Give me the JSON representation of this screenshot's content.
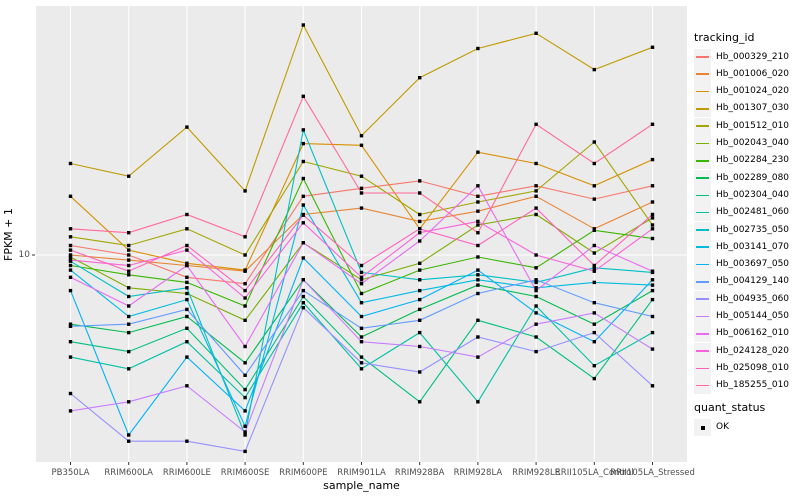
{
  "chart_data": {
    "type": "line",
    "title": "",
    "xlabel": "sample_name",
    "ylabel": "FPKM + 1",
    "y_scale": "log10",
    "ylim": [
      1.26,
      121
    ],
    "y_ticks": [
      {
        "value": 10,
        "label": "10"
      }
    ],
    "grid": "white major gridlines on gray panel, vertical line per category, horizontal line at y=10",
    "legend_position": "right",
    "panel_background": "#EBEBEB",
    "gridline_color": "#FFFFFF",
    "point_color": "#000000",
    "point_shape": "filled-square",
    "categories": [
      "PB350LA",
      "RRIM600LA",
      "RRIM600LE",
      "RRIM600SE",
      "RRIM600PE",
      "RRIM901LA",
      "RRIM928BA",
      "RRIM928LA",
      "RRIM928LE",
      "RRII105LA_Control",
      "RRII105LA_Stressed"
    ],
    "series": [
      {
        "tracking_id": "Hb_000329_210",
        "color": "#F8766D",
        "values": [
          11,
          10,
          8.0,
          7.5,
          18,
          19.5,
          21,
          18,
          20,
          17.5,
          20
        ]
      },
      {
        "tracking_id": "Hb_001006_020",
        "color": "#EA8331",
        "values": [
          10,
          9.5,
          9.0,
          8.5,
          15,
          16,
          14,
          15.5,
          18,
          13,
          17
        ]
      },
      {
        "tracking_id": "Hb_001024_020",
        "color": "#D89000",
        "values": [
          18,
          10.5,
          9.2,
          8.6,
          30.5,
          30,
          13,
          28,
          25,
          20,
          26
        ]
      },
      {
        "tracking_id": "Hb_001307_030",
        "color": "#C09B00",
        "values": [
          25,
          22,
          36,
          19,
          100,
          33,
          59,
          79,
          92,
          64,
          80
        ]
      },
      {
        "tracking_id": "Hb_001512_010",
        "color": "#A3A500",
        "values": [
          12,
          11,
          13,
          10,
          25.5,
          22,
          15,
          17,
          19,
          31,
          13.5
        ]
      },
      {
        "tracking_id": "Hb_002043_040",
        "color": "#7CAE00",
        "values": [
          9.8,
          7.2,
          6.8,
          5.2,
          11.3,
          7.8,
          9.2,
          13.5,
          15,
          10.2,
          14.5
        ]
      },
      {
        "tracking_id": "Hb_002284_230",
        "color": "#39B600",
        "values": [
          9.0,
          8.2,
          7.6,
          6.0,
          21.5,
          6.8,
          8.6,
          9.8,
          8.8,
          12.8,
          11.8
        ]
      },
      {
        "tracking_id": "Hb_002289_080",
        "color": "#00BB4E",
        "values": [
          5.0,
          4.6,
          5.4,
          3.4,
          7.8,
          4.4,
          5.8,
          7.4,
          6.6,
          5.0,
          7.0
        ]
      },
      {
        "tracking_id": "Hb_002304_040",
        "color": "#00BF7D",
        "values": [
          4.2,
          3.8,
          4.8,
          2.6,
          6.6,
          3.6,
          2.3,
          5.2,
          4.4,
          2.9,
          6.4
        ]
      },
      {
        "tracking_id": "Hb_002481_060",
        "color": "#00C1A2",
        "values": [
          3.6,
          3.2,
          4.2,
          2.4,
          6.2,
          3.2,
          4.6,
          2.3,
          6.0,
          3.3,
          4.6
        ]
      },
      {
        "tracking_id": "Hb_002735_050",
        "color": "#00BFC4",
        "values": [
          9.4,
          6.6,
          7.2,
          1.65,
          35,
          8.4,
          7.8,
          8.2,
          7.6,
          8.8,
          8.4
        ]
      },
      {
        "tracking_id": "Hb_003141_070",
        "color": "#00BAE0",
        "values": [
          8.6,
          5.4,
          6.4,
          1.8,
          16.5,
          6.2,
          7.0,
          7.8,
          7.2,
          7.6,
          7.4
        ]
      },
      {
        "tracking_id": "Hb_003697_050",
        "color": "#00B2F6",
        "values": [
          7.0,
          1.65,
          3.6,
          2.1,
          9.7,
          5.4,
          6.4,
          8.6,
          5.6,
          4.2,
          7.8
        ]
      },
      {
        "tracking_id": "Hb_004129_140",
        "color": "#619CFF",
        "values": [
          4.9,
          5.0,
          5.8,
          3.0,
          7.0,
          4.8,
          5.2,
          6.8,
          7.8,
          6.2,
          5.4
        ]
      },
      {
        "tracking_id": "Hb_004935_060",
        "color": "#9590FF",
        "values": [
          2.5,
          1.55,
          1.55,
          1.4,
          5.9,
          3.4,
          3.1,
          4.4,
          3.8,
          4.6,
          2.7
        ]
      },
      {
        "tracking_id": "Hb_005144_050",
        "color": "#C77CFF",
        "values": [
          2.1,
          2.3,
          2.7,
          1.7,
          7.8,
          4.2,
          4.0,
          3.6,
          5.0,
          5.6,
          3.9
        ]
      },
      {
        "tracking_id": "Hb_006162_010",
        "color": "#E76BF3",
        "values": [
          8.0,
          6.0,
          9.0,
          4.0,
          11.3,
          7.5,
          11.5,
          20,
          7.0,
          11,
          8.5
        ]
      },
      {
        "tracking_id": "Hb_024128_020",
        "color": "#FA62DB",
        "values": [
          9.5,
          9.0,
          10.5,
          6.5,
          13.8,
          8.0,
          12.5,
          14,
          10,
          8.5,
          13
        ]
      },
      {
        "tracking_id": "Hb_025098_010",
        "color": "#FF62BC",
        "values": [
          10.5,
          8.5,
          11,
          7.0,
          14.9,
          9.0,
          13,
          11,
          16,
          9.0,
          15
        ]
      },
      {
        "tracking_id": "Hb_185255_010",
        "color": "#FF6A98",
        "values": [
          13,
          12.5,
          15,
          12,
          49,
          18.6,
          18.6,
          12.5,
          37,
          25,
          37
        ]
      }
    ],
    "legends": {
      "tracking_id": {
        "title": "tracking_id"
      },
      "quant_status": {
        "title": "quant_status",
        "items": [
          {
            "label": "OK",
            "key_color": "#000000"
          }
        ]
      }
    }
  }
}
